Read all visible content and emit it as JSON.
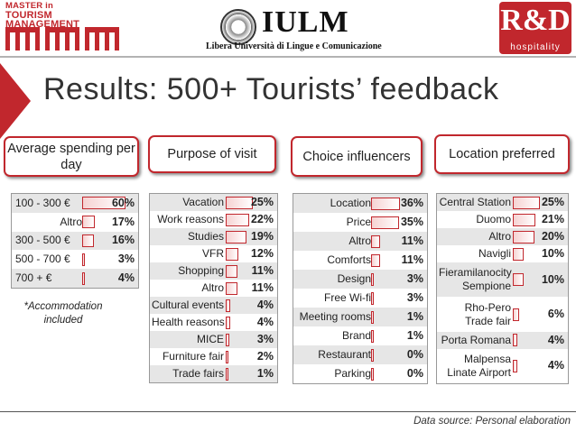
{
  "header": {
    "left_logo": {
      "line1": "MASTER in",
      "line2": "TOURISM MANAGEMENT"
    },
    "center_logo": {
      "name": "IULM",
      "subtitle": "Libera Università di Lingue e Comunicazione"
    },
    "right_logo": {
      "letters": "R&D",
      "subtitle": "hospitality"
    }
  },
  "title": "Results: 500+ Tourists’ feedback",
  "accent": "#c1272d",
  "sections": {
    "spending": {
      "heading": "Average spending per day",
      "footnote": "*Accommodation included",
      "rows": [
        {
          "label": "100 - 300 €",
          "value": "60%",
          "pct": 60
        },
        {
          "label": "Altro",
          "value": "17%",
          "pct": 17
        },
        {
          "label": "300 - 500 €",
          "value": "16%",
          "pct": 16
        },
        {
          "label": "500 - 700 €",
          "value": "3%",
          "pct": 3
        },
        {
          "label": "700 + €",
          "value": "4%",
          "pct": 4
        }
      ]
    },
    "purpose": {
      "heading": "Purpose of visit",
      "rows": [
        {
          "label": "Vacation",
          "value": "25%",
          "pct": 25
        },
        {
          "label": "Work reasons",
          "value": "22%",
          "pct": 22
        },
        {
          "label": "Studies",
          "value": "19%",
          "pct": 19
        },
        {
          "label": "VFR",
          "value": "12%",
          "pct": 12
        },
        {
          "label": "Shopping",
          "value": "11%",
          "pct": 11
        },
        {
          "label": "Altro",
          "value": "11%",
          "pct": 11
        },
        {
          "label": "Cultural events",
          "value": "4%",
          "pct": 4
        },
        {
          "label": "Health reasons",
          "value": "4%",
          "pct": 4
        },
        {
          "label": "MICE",
          "value": "3%",
          "pct": 3
        },
        {
          "label": "Furniture fair",
          "value": "2%",
          "pct": 2
        },
        {
          "label": "Trade fairs",
          "value": "1%",
          "pct": 1
        }
      ]
    },
    "influencers": {
      "heading": "Choice influencers",
      "rows": [
        {
          "label": "Location",
          "value": "36%",
          "pct": 36
        },
        {
          "label": "Price",
          "value": "35%",
          "pct": 35
        },
        {
          "label": "Altro",
          "value": "11%",
          "pct": 11
        },
        {
          "label": "Comforts",
          "value": "11%",
          "pct": 11
        },
        {
          "label": "Design",
          "value": "3%",
          "pct": 3
        },
        {
          "label": "Free Wi-fi",
          "value": "3%",
          "pct": 3
        },
        {
          "label": "Meeting rooms",
          "value": "1%",
          "pct": 1
        },
        {
          "label": "Brand",
          "value": "1%",
          "pct": 1
        },
        {
          "label": "Restaurant",
          "value": "0%",
          "pct": 0
        },
        {
          "label": "Parking",
          "value": "0%",
          "pct": 0
        }
      ]
    },
    "location": {
      "heading": "Location preferred",
      "rows": [
        {
          "label": "Central Station",
          "value": "25%",
          "pct": 25
        },
        {
          "label": "Duomo",
          "value": "21%",
          "pct": 21
        },
        {
          "label": "Altro",
          "value": "20%",
          "pct": 20
        },
        {
          "label": "Navigli",
          "value": "10%",
          "pct": 10
        },
        {
          "label": "Fieramilanocity Sempione",
          "value": "10%",
          "pct": 10
        },
        {
          "label": "Rho-Pero Trade fair",
          "value": "6%",
          "pct": 6
        },
        {
          "label": "Porta Romana",
          "value": "4%",
          "pct": 4
        },
        {
          "label": "Malpensa Linate Airport",
          "value": "4%",
          "pct": 4
        }
      ]
    }
  },
  "source": "Data source: Personal elaboration"
}
